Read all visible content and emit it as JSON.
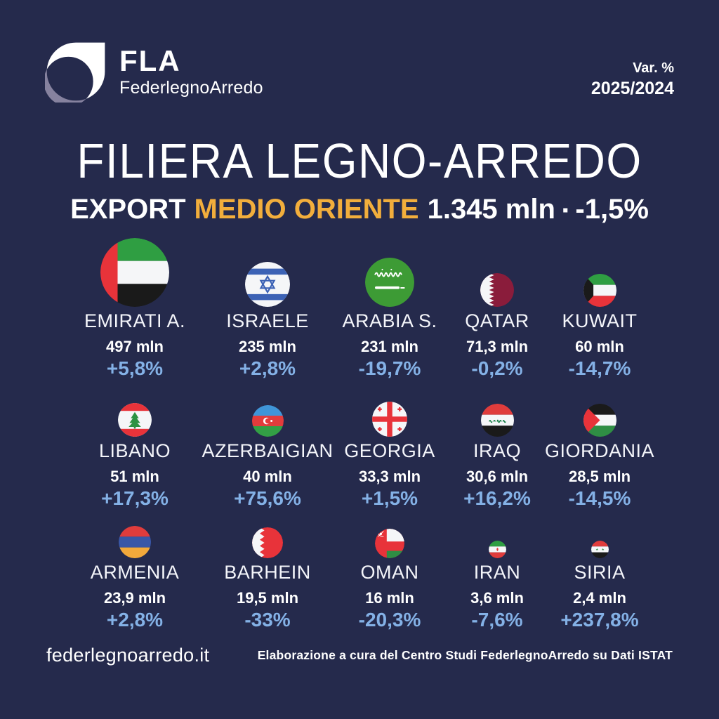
{
  "header": {
    "logo_acronym": "FLA",
    "logo_name": "FederlegnoArredo",
    "var_label": "Var. %",
    "var_period": "2025/2024"
  },
  "title": "FILIERA LEGNO-ARREDO",
  "subtitle": {
    "export_label": "EXPORT",
    "region_label": "MEDIO ORIENTE",
    "total_value": "1.345 mln",
    "separator": "▪",
    "total_change": "-1,5%"
  },
  "footer": {
    "website": "federlegnoarredo.it",
    "source": "Elaborazione a cura del Centro Studi FederlegnoArredo su Dati ISTAT"
  },
  "colors": {
    "background": "#252A4C",
    "accent_orange": "#F2AE3C",
    "variation_blue": "#84B1E6",
    "text_white": "#FFFFFF",
    "logo_grey": "#8E8AA6"
  },
  "chart_data": {
    "type": "pictogram",
    "title": "FILIERA LEGNO-ARREDO",
    "subtitle": "EXPORT MEDIO ORIENTE",
    "unit": "mln",
    "variation_period": "2025/2024",
    "total": {
      "value_mln": 1345,
      "value_label": "1.345 mln",
      "change_pct": -1.5,
      "change_label": "-1,5%"
    },
    "legend_position": "none",
    "layout": "3 rows x 5 columns, flag size proportional to export value",
    "countries": [
      {
        "name": "EMIRATI A.",
        "value_mln": 497,
        "value_label": "497 mln",
        "change_pct": 5.8,
        "change_label": "+5,8%",
        "flag": "uae",
        "flag_size": 98
      },
      {
        "name": "ISRAELE",
        "value_mln": 235,
        "value_label": "235 mln",
        "change_pct": 2.8,
        "change_label": "+2,8%",
        "flag": "israel",
        "flag_size": 64
      },
      {
        "name": "ARABIA S.",
        "value_mln": 231,
        "value_label": "231 mln",
        "change_pct": -19.7,
        "change_label": "-19,7%",
        "flag": "saudi",
        "flag_size": 70
      },
      {
        "name": "QATAR",
        "value_mln": 71.3,
        "value_label": "71,3 mln",
        "change_pct": -0.2,
        "change_label": "-0,2%",
        "flag": "qatar",
        "flag_size": 48
      },
      {
        "name": "KUWAIT",
        "value_mln": 60,
        "value_label": "60 mln",
        "change_pct": -14.7,
        "change_label": "-14,7%",
        "flag": "kuwait",
        "flag_size": 47
      },
      {
        "name": "LIBANO",
        "value_mln": 51,
        "value_label": "51 mln",
        "change_pct": 17.3,
        "change_label": "+17,3%",
        "flag": "lebanon",
        "flag_size": 48
      },
      {
        "name": "AZERBAIGIAN",
        "value_mln": 40,
        "value_label": "40 mln",
        "change_pct": 75.6,
        "change_label": "+75,6%",
        "flag": "azerbaijan",
        "flag_size": 45
      },
      {
        "name": "GEORGIA",
        "value_mln": 33.3,
        "value_label": "33,3 mln",
        "change_pct": 1.5,
        "change_label": "+1,5%",
        "flag": "georgia",
        "flag_size": 50
      },
      {
        "name": "IRAQ",
        "value_mln": 30.6,
        "value_label": "30,6 mln",
        "change_pct": 16.2,
        "change_label": "+16,2%",
        "flag": "iraq",
        "flag_size": 47
      },
      {
        "name": "GIORDANIA",
        "value_mln": 28.5,
        "value_label": "28,5 mln",
        "change_pct": -14.5,
        "change_label": "-14,5%",
        "flag": "jordan",
        "flag_size": 47
      },
      {
        "name": "ARMENIA",
        "value_mln": 23.9,
        "value_label": "23,9 mln",
        "change_pct": 2.8,
        "change_label": "+2,8%",
        "flag": "armenia",
        "flag_size": 46
      },
      {
        "name": "BARHEIN",
        "value_mln": 19.5,
        "value_label": "19,5 mln",
        "change_pct": -33,
        "change_label": "-33%",
        "flag": "bahrain",
        "flag_size": 44
      },
      {
        "name": "OMAN",
        "value_mln": 16,
        "value_label": "16 mln",
        "change_pct": -20.3,
        "change_label": "-20,3%",
        "flag": "oman",
        "flag_size": 42
      },
      {
        "name": "IRAN",
        "value_mln": 3.6,
        "value_label": "3,6 mln",
        "change_pct": -7.6,
        "change_label": "-7,6%",
        "flag": "iran",
        "flag_size": 25
      },
      {
        "name": "SIRIA",
        "value_mln": 2.4,
        "value_label": "2,4 mln",
        "change_pct": 237.8,
        "change_label": "+237,8%",
        "flag": "syria",
        "flag_size": 25
      }
    ]
  }
}
